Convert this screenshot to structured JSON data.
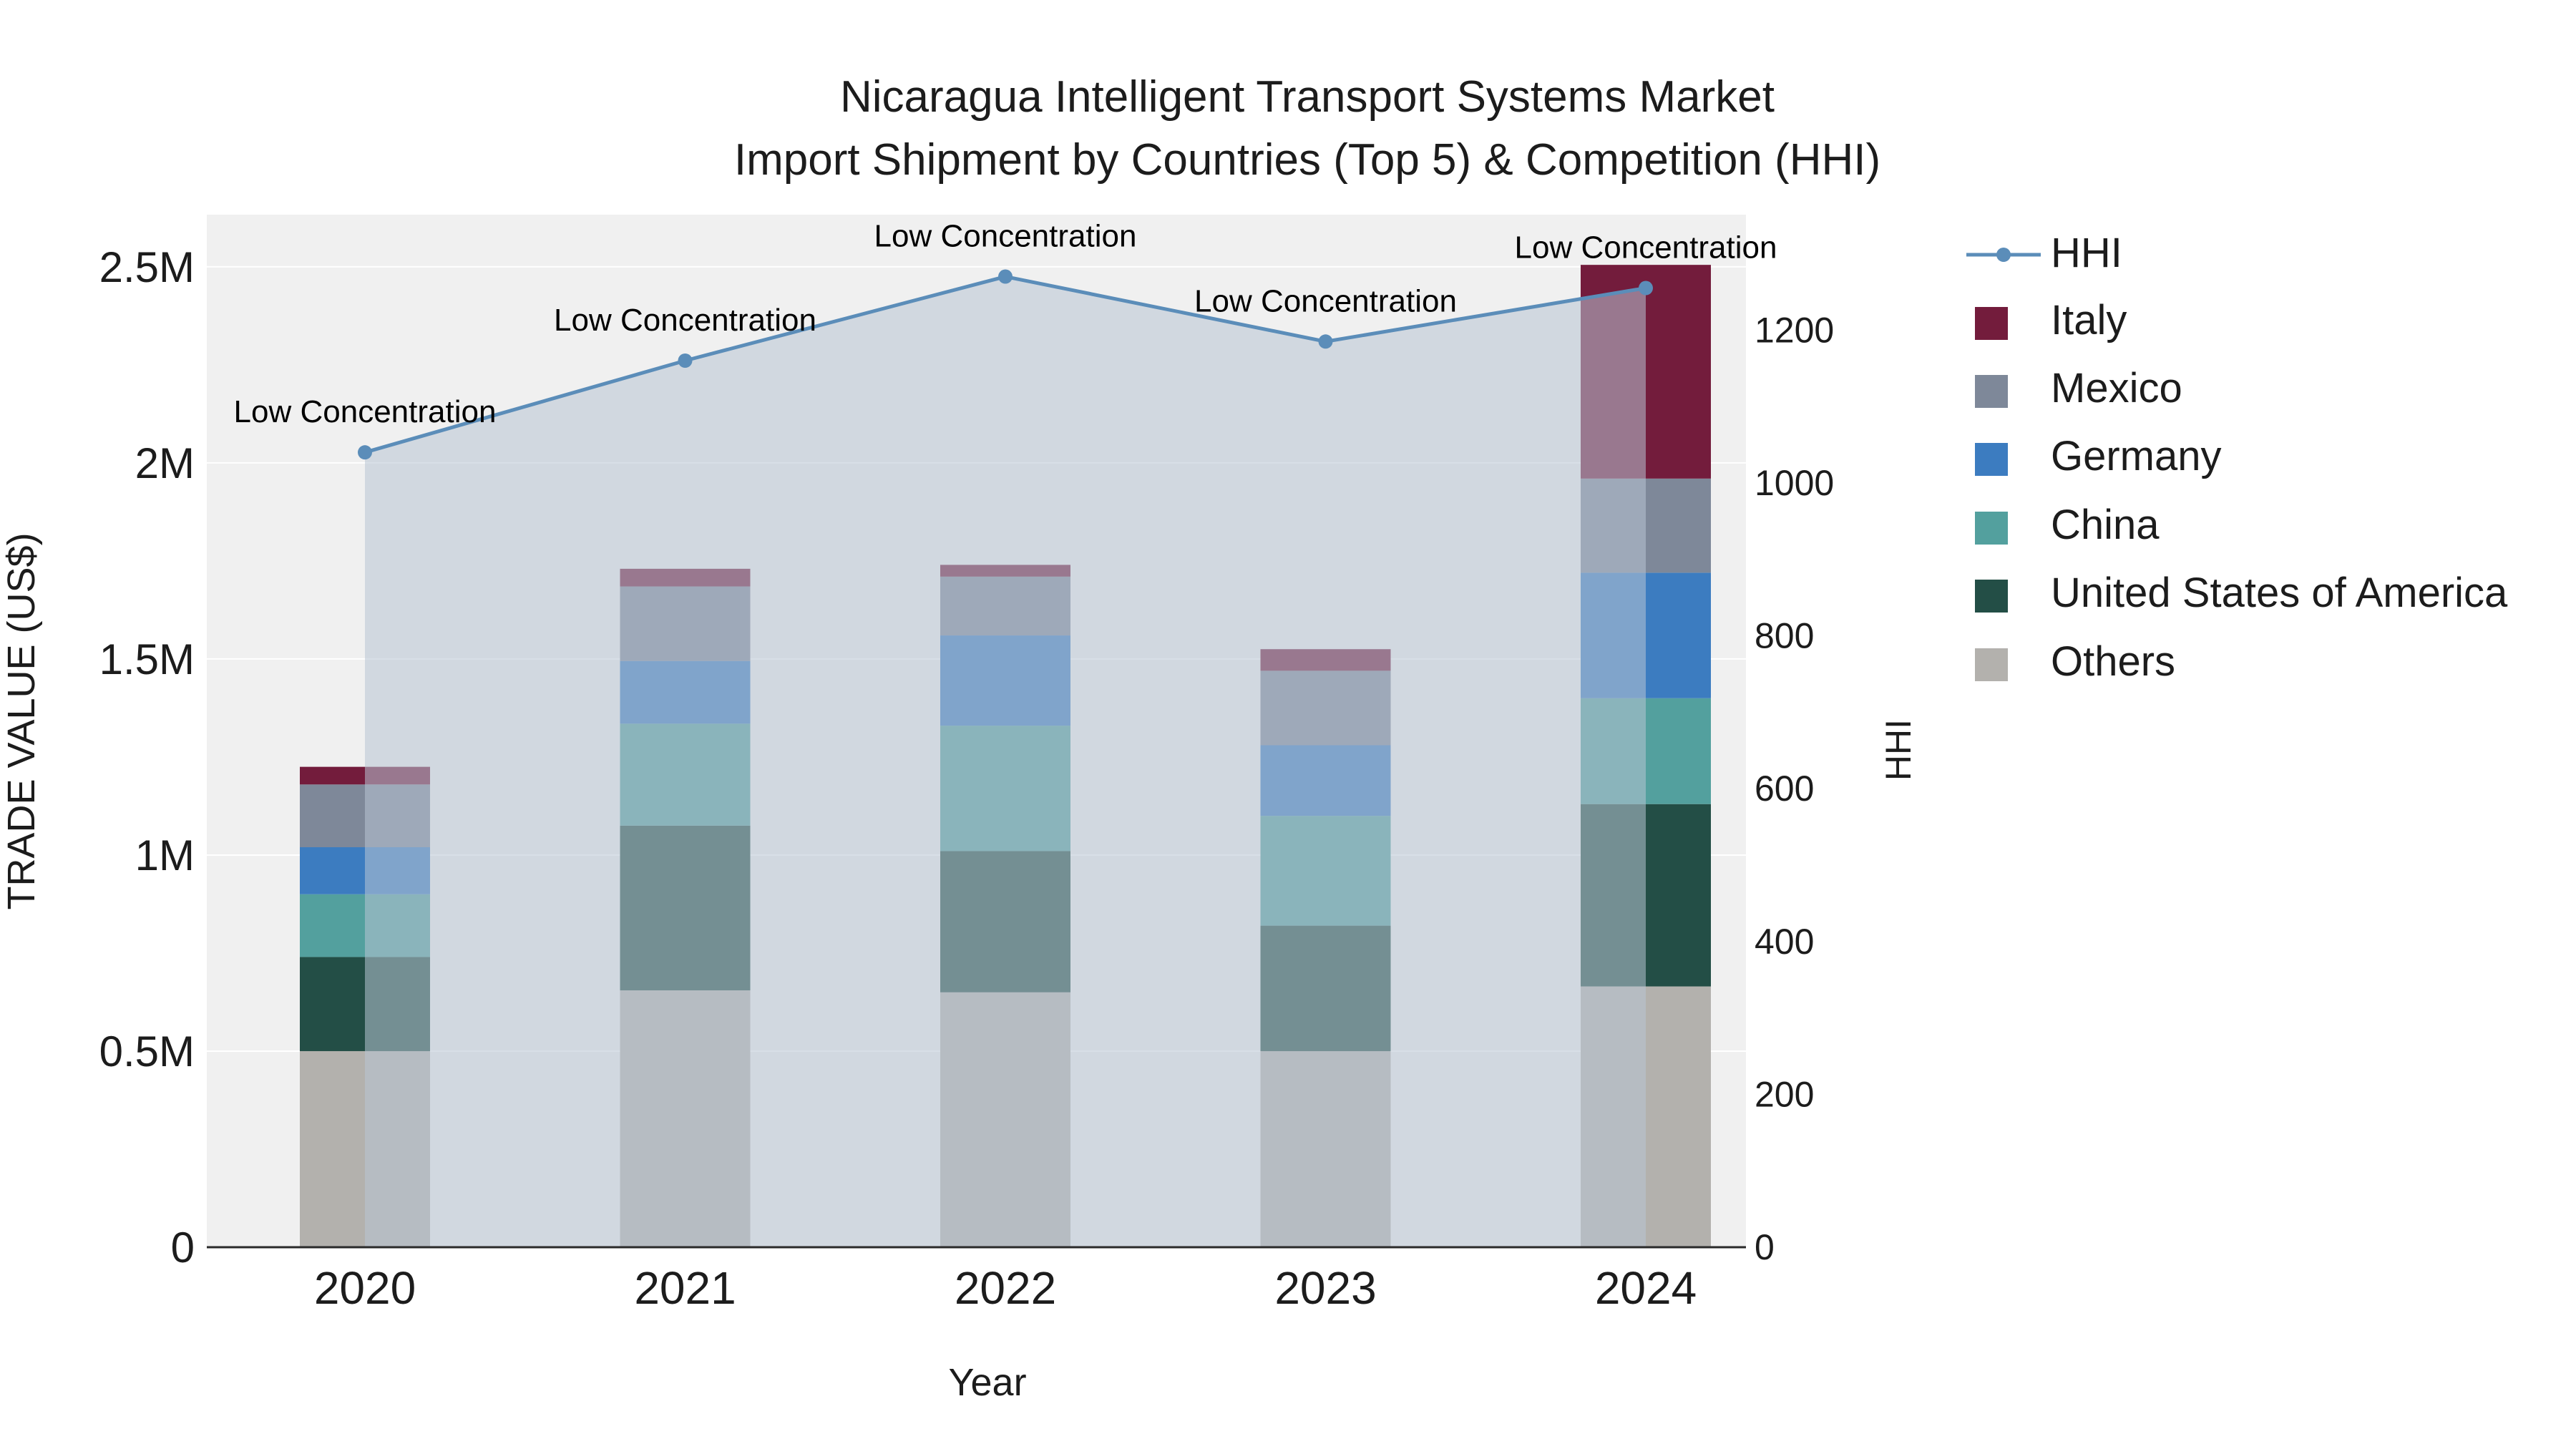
{
  "title": {
    "line1": "Nicaragua Intelligent Transport Systems Market",
    "line2": "Import Shipment by Countries (Top 5) & Competition (HHI)"
  },
  "axes": {
    "x_label": "Year",
    "y_left_label": "TRADE VALUE (US$)",
    "y_right_label": "HHI",
    "y_left_ticks": [
      "0",
      "0.5M",
      "1M",
      "1.5M",
      "2M",
      "2.5M"
    ],
    "y_left_tick_values": [
      0,
      500000,
      1000000,
      1500000,
      2000000,
      2500000
    ],
    "y_right_ticks": [
      "0",
      "200",
      "400",
      "600",
      "800",
      "1000",
      "1200"
    ],
    "y_right_tick_values": [
      0,
      200,
      400,
      600,
      800,
      1000,
      1200
    ]
  },
  "colors": {
    "plot_background": "#f0f0f0",
    "gridline": "#ffffff",
    "hhi_line": "#5b8db9",
    "hhi_area_fill": "rgba(184,196,212,0.55)",
    "axis_line": "#2a2a2a"
  },
  "chart_data": {
    "type": "bar",
    "subtype": "stacked-bar-with-line",
    "categories": [
      "2020",
      "2021",
      "2022",
      "2023",
      "2024"
    ],
    "bar_series": [
      {
        "name": "Others",
        "color": "#b3b1ad",
        "values": [
          500000,
          655000,
          650000,
          500000,
          665000
        ]
      },
      {
        "name": "United States of America",
        "color": "#234e46",
        "values": [
          240000,
          420000,
          360000,
          320000,
          465000
        ]
      },
      {
        "name": "China",
        "color": "#53a09e",
        "values": [
          160000,
          260000,
          320000,
          280000,
          270000
        ]
      },
      {
        "name": "Germany",
        "color": "#3c7cc0",
        "values": [
          120000,
          160000,
          230000,
          180000,
          320000
        ]
      },
      {
        "name": "Mexico",
        "color": "#7e8899",
        "values": [
          160000,
          190000,
          150000,
          190000,
          240000
        ]
      },
      {
        "name": "Italy",
        "color": "#731c3c",
        "values": [
          45000,
          45000,
          30000,
          55000,
          545000
        ]
      }
    ],
    "line_series": {
      "name": "HHI",
      "color": "#5b8db9",
      "values": [
        1040,
        1160,
        1270,
        1185,
        1255
      ],
      "axis": "right"
    },
    "annotations": [
      "Low Concentration",
      "Low Concentration",
      "Low Concentration",
      "Low Concentration",
      "Low Concentration"
    ],
    "ylim_left": [
      0,
      2633000
    ],
    "ylim_right": [
      0,
      1351
    ],
    "grid": "horizontal",
    "legend_position": "right"
  },
  "legend": {
    "items": [
      {
        "label": "HHI",
        "type": "line",
        "color": "#5b8db9"
      },
      {
        "label": "Italy",
        "type": "swatch",
        "color": "#731c3c"
      },
      {
        "label": "Mexico",
        "type": "swatch",
        "color": "#7e8899"
      },
      {
        "label": "Germany",
        "type": "swatch",
        "color": "#3c7cc0"
      },
      {
        "label": "China",
        "type": "swatch",
        "color": "#53a09e"
      },
      {
        "label": "United States of America",
        "type": "swatch",
        "color": "#234e46"
      },
      {
        "label": "Others",
        "type": "swatch",
        "color": "#b3b1ad"
      }
    ]
  }
}
